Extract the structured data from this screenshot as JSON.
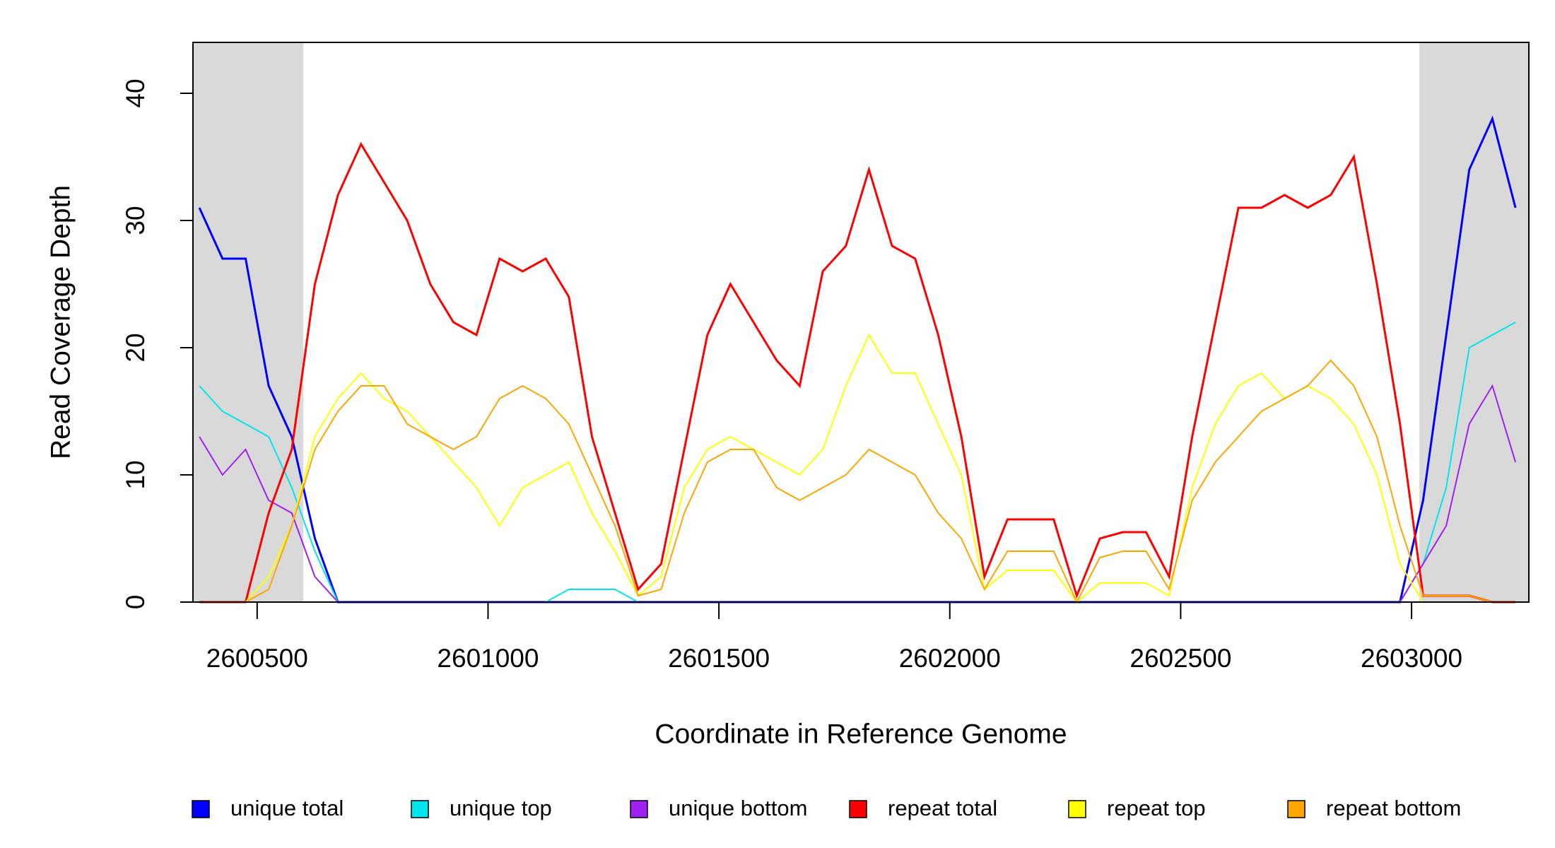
{
  "chart_data": {
    "type": "line",
    "x_label": "Coordinate in Reference Genome",
    "y_label": "Read Coverage Depth",
    "xlim": [
      2600361,
      2603254
    ],
    "ylim": [
      0,
      44
    ],
    "xticks": [
      2600500,
      2601000,
      2601500,
      2602000,
      2602500,
      2603000
    ],
    "yticks": [
      0,
      10,
      20,
      30,
      40
    ],
    "shaded_regions": [
      [
        2600361,
        2600600
      ],
      [
        2603017,
        2603254
      ]
    ],
    "shade_color": "#d9d9d9",
    "legend": "bottom",
    "x": [
      2600375,
      2600425,
      2600475,
      2600525,
      2600575,
      2600625,
      2600675,
      2600725,
      2600775,
      2600825,
      2600875,
      2600925,
      2600975,
      2601025,
      2601075,
      2601125,
      2601175,
      2601225,
      2601275,
      2601325,
      2601375,
      2601425,
      2601475,
      2601525,
      2601575,
      2601625,
      2601675,
      2601725,
      2601775,
      2601825,
      2601875,
      2601925,
      2601975,
      2602025,
      2602075,
      2602125,
      2602175,
      2602225,
      2602275,
      2602325,
      2602375,
      2602425,
      2602475,
      2602525,
      2602575,
      2602625,
      2602675,
      2602725,
      2602775,
      2602825,
      2602875,
      2602925,
      2602975,
      2603025,
      2603075,
      2603125,
      2603175,
      2603225
    ],
    "series": [
      {
        "name": "unique total",
        "color": "#0000ff",
        "width": 3,
        "values": [
          31,
          27,
          27,
          17,
          13,
          5,
          0,
          0,
          0,
          0,
          0,
          0,
          0,
          0,
          0,
          0,
          0,
          0,
          0,
          0,
          0,
          0,
          0,
          0,
          0,
          0,
          0,
          0,
          0,
          0,
          0,
          0,
          0,
          0,
          0,
          0,
          0,
          0,
          0,
          0,
          0,
          0,
          0,
          0,
          0,
          0,
          0,
          0,
          0,
          0,
          0,
          0,
          0,
          8,
          21,
          34,
          38,
          31
        ]
      },
      {
        "name": "unique top",
        "color": "#00e5ee",
        "width": 2,
        "values": [
          17,
          15,
          14,
          13,
          9,
          4,
          0,
          0,
          0,
          0,
          0,
          0,
          0,
          0,
          0,
          0,
          1,
          1,
          1,
          0,
          0,
          0,
          0,
          0,
          0,
          0,
          0,
          0,
          0,
          0,
          0,
          0,
          0,
          0,
          0,
          0,
          0,
          0,
          0,
          0,
          0,
          0,
          0,
          0,
          0,
          0,
          0,
          0,
          0,
          0,
          0,
          0,
          0,
          3,
          9,
          20,
          21,
          22
        ]
      },
      {
        "name": "unique bottom",
        "color": "#a020f0",
        "width": 2,
        "values": [
          13,
          10,
          12,
          8,
          7,
          2,
          0,
          0,
          0,
          0,
          0,
          0,
          0,
          0,
          0,
          0,
          0,
          0,
          0,
          0,
          0,
          0,
          0,
          0,
          0,
          0,
          0,
          0,
          0,
          0,
          0,
          0,
          0,
          0,
          0,
          0,
          0,
          0,
          0,
          0,
          0,
          0,
          0,
          0,
          0,
          0,
          0,
          0,
          0,
          0,
          0,
          0,
          0,
          3,
          6,
          14,
          17,
          11
        ]
      },
      {
        "name": "repeat total",
        "color": "#ff0000",
        "width": 3,
        "values": [
          0,
          0,
          0,
          7,
          12,
          25,
          32,
          36,
          33,
          30,
          25,
          22,
          21,
          27,
          26,
          27,
          24,
          13,
          7,
          1,
          3,
          12,
          21,
          25,
          22,
          19,
          17,
          26,
          28,
          34,
          28,
          27,
          21,
          13,
          2,
          6.5,
          6.5,
          6.5,
          0.5,
          5,
          5.5,
          5.5,
          2,
          13,
          22,
          31,
          31,
          32,
          31,
          32,
          35,
          25,
          14,
          0.5,
          0.5,
          0.5,
          0,
          0
        ]
      },
      {
        "name": "repeat top",
        "color": "#ffff00",
        "width": 2,
        "values": [
          0,
          0,
          0,
          2,
          6,
          13,
          16,
          18,
          16,
          15,
          13,
          11,
          9,
          6,
          9,
          10,
          11,
          7,
          4,
          0.5,
          2,
          9,
          12,
          13,
          12,
          11,
          10,
          12,
          17,
          21,
          18,
          18,
          14,
          10,
          1,
          2.5,
          2.5,
          2.5,
          0,
          1.5,
          1.5,
          1.5,
          0.5,
          9,
          14,
          17,
          18,
          16,
          17,
          16,
          14,
          10,
          3,
          0,
          0,
          0,
          0,
          0
        ]
      },
      {
        "name": "repeat bottom",
        "color": "#ffa500",
        "width": 2,
        "values": [
          0,
          0,
          0,
          1,
          6,
          12,
          15,
          17,
          17,
          14,
          13,
          12,
          13,
          16,
          17,
          16,
          14,
          10,
          6,
          0.5,
          1,
          7,
          11,
          12,
          12,
          9,
          8,
          9,
          10,
          12,
          11,
          10,
          7,
          5,
          1,
          4,
          4,
          4,
          0,
          3.5,
          4,
          4,
          1,
          8,
          11,
          13,
          15,
          16,
          17,
          19,
          17,
          13,
          6,
          0.5,
          0.5,
          0.5,
          0,
          0
        ]
      }
    ]
  }
}
